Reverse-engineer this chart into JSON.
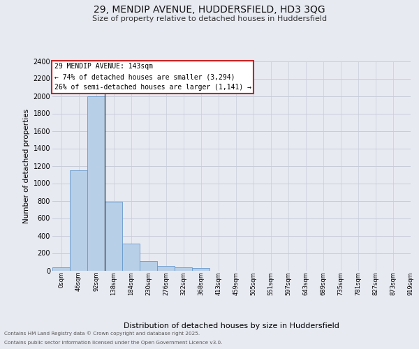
{
  "title_line1": "29, MENDIP AVENUE, HUDDERSFIELD, HD3 3QG",
  "title_line2": "Size of property relative to detached houses in Huddersfield",
  "xlabel": "Distribution of detached houses by size in Huddersfield",
  "ylabel": "Number of detached properties",
  "bar_values": [
    35,
    1150,
    2000,
    790,
    305,
    110,
    50,
    40,
    25,
    0,
    0,
    0,
    0,
    0,
    0,
    0,
    0,
    0,
    0,
    0
  ],
  "bin_labels": [
    "0sqm",
    "46sqm",
    "92sqm",
    "138sqm",
    "184sqm",
    "230sqm",
    "276sqm",
    "322sqm",
    "368sqm",
    "413sqm",
    "459sqm",
    "505sqm",
    "551sqm",
    "597sqm",
    "643sqm",
    "689sqm",
    "735sqm",
    "781sqm",
    "827sqm",
    "873sqm",
    "919sqm"
  ],
  "bar_color": "#b8cfe8",
  "bar_edge_color": "#6699cc",
  "grid_color": "#c8ccd8",
  "bg_color": "#e8eaf2",
  "annotation_text": "29 MENDIP AVENUE: 143sqm\n← 74% of detached houses are smaller (3,294)\n26% of semi-detached houses are larger (1,141) →",
  "annotation_box_facecolor": "#ffffff",
  "annotation_box_edgecolor": "#cc2222",
  "ylim": [
    0,
    2400
  ],
  "yticks": [
    0,
    200,
    400,
    600,
    800,
    1000,
    1200,
    1400,
    1600,
    1800,
    2000,
    2200,
    2400
  ],
  "footer_line1": "Contains HM Land Registry data © Crown copyright and database right 2025.",
  "footer_line2": "Contains public sector information licensed under the Open Government Licence v3.0.",
  "property_vline_x": 2.5
}
